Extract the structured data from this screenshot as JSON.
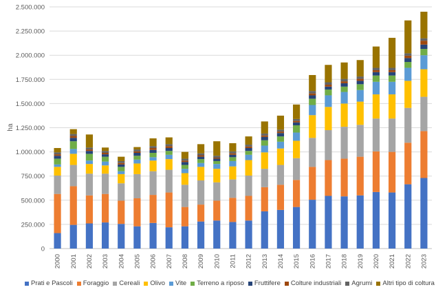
{
  "chart_data": {
    "type": "bar",
    "stacked": true,
    "ylabel": "ha",
    "ylim": [
      0,
      2500000
    ],
    "yticks": [
      "0",
      "250.000",
      "500.000",
      "750.000",
      "1.000.000",
      "1.250.000",
      "1.500.000",
      "1.750.000",
      "2.000.000",
      "2.250.000",
      "2.500.000"
    ],
    "grid": true,
    "legend_position": "bottom",
    "categories": [
      "2000",
      "2001",
      "2002",
      "2003",
      "2004",
      "2005",
      "2006",
      "2007",
      "2008",
      "2009",
      "2010",
      "2011",
      "2012",
      "2013",
      "2014",
      "2015",
      "2016",
      "2017",
      "2018",
      "2019",
      "2020",
      "2021",
      "2022",
      "2023"
    ],
    "series": [
      {
        "name": "Prati e Pascoli",
        "color": "#4472c4",
        "values": [
          160000,
          245000,
          260000,
          270000,
          255000,
          230000,
          265000,
          220000,
          230000,
          280000,
          290000,
          275000,
          290000,
          385000,
          400000,
          430000,
          505000,
          545000,
          540000,
          550000,
          585000,
          580000,
          665000,
          730000
        ]
      },
      {
        "name": "Foraggio",
        "color": "#ed7d31",
        "values": [
          405000,
          400000,
          290000,
          295000,
          240000,
          290000,
          290000,
          360000,
          200000,
          175000,
          205000,
          250000,
          255000,
          250000,
          260000,
          280000,
          340000,
          370000,
          390000,
          400000,
          420000,
          420000,
          430000,
          485000
        ]
      },
      {
        "name": "Cereali",
        "color": "#a5a5a5",
        "values": [
          190000,
          220000,
          225000,
          210000,
          180000,
          250000,
          245000,
          235000,
          230000,
          250000,
          190000,
          190000,
          210000,
          190000,
          205000,
          225000,
          300000,
          310000,
          330000,
          330000,
          340000,
          345000,
          360000,
          355000
        ]
      },
      {
        "name": "Olivo",
        "color": "#ffc000",
        "values": [
          90000,
          115000,
          100000,
          85000,
          95000,
          110000,
          110000,
          110000,
          120000,
          140000,
          140000,
          135000,
          160000,
          170000,
          170000,
          180000,
          235000,
          240000,
          240000,
          240000,
          250000,
          250000,
          280000,
          285000
        ]
      },
      {
        "name": "Vite",
        "color": "#5b9bd5",
        "values": [
          25000,
          50000,
          35000,
          40000,
          30000,
          40000,
          35000,
          45000,
          45000,
          40000,
          50000,
          55000,
          55000,
          70000,
          70000,
          85000,
          105000,
          120000,
          120000,
          120000,
          130000,
          130000,
          135000,
          145000
        ]
      },
      {
        "name": "Terreno a riposo",
        "color": "#70ad47",
        "values": [
          60000,
          80000,
          70000,
          50000,
          45000,
          40000,
          45000,
          40000,
          40000,
          40000,
          30000,
          40000,
          40000,
          55000,
          55000,
          75000,
          65000,
          60000,
          55000,
          60000,
          65000,
          65000,
          60000,
          65000
        ]
      },
      {
        "name": "Fruttifere",
        "color": "#264478",
        "values": [
          30000,
          35000,
          30000,
          25000,
          25000,
          30000,
          30000,
          30000,
          30000,
          25000,
          25000,
          25000,
          30000,
          35000,
          35000,
          30000,
          35000,
          30000,
          35000,
          35000,
          35000,
          35000,
          40000,
          45000
        ]
      },
      {
        "name": "Colture industriali",
        "color": "#9e480e",
        "values": [
          15000,
          20000,
          15000,
          15000,
          15000,
          15000,
          20000,
          20000,
          15000,
          15000,
          10000,
          15000,
          15000,
          15000,
          15000,
          15000,
          20000,
          20000,
          20000,
          20000,
          20000,
          20000,
          25000,
          40000
        ]
      },
      {
        "name": "Agrumi",
        "color": "#636363",
        "values": [
          20000,
          20000,
          20000,
          20000,
          20000,
          20000,
          20000,
          20000,
          20000,
          20000,
          20000,
          20000,
          20000,
          20000,
          20000,
          20000,
          25000,
          25000,
          25000,
          25000,
          25000,
          25000,
          25000,
          25000
        ]
      },
      {
        "name": "Altri tipo di coltura",
        "color": "#997300",
        "values": [
          45000,
          50000,
          135000,
          35000,
          45000,
          25000,
          80000,
          70000,
          70000,
          95000,
          150000,
          85000,
          85000,
          125000,
          145000,
          150000,
          165000,
          180000,
          170000,
          170000,
          220000,
          310000,
          340000,
          275000
        ]
      }
    ]
  }
}
